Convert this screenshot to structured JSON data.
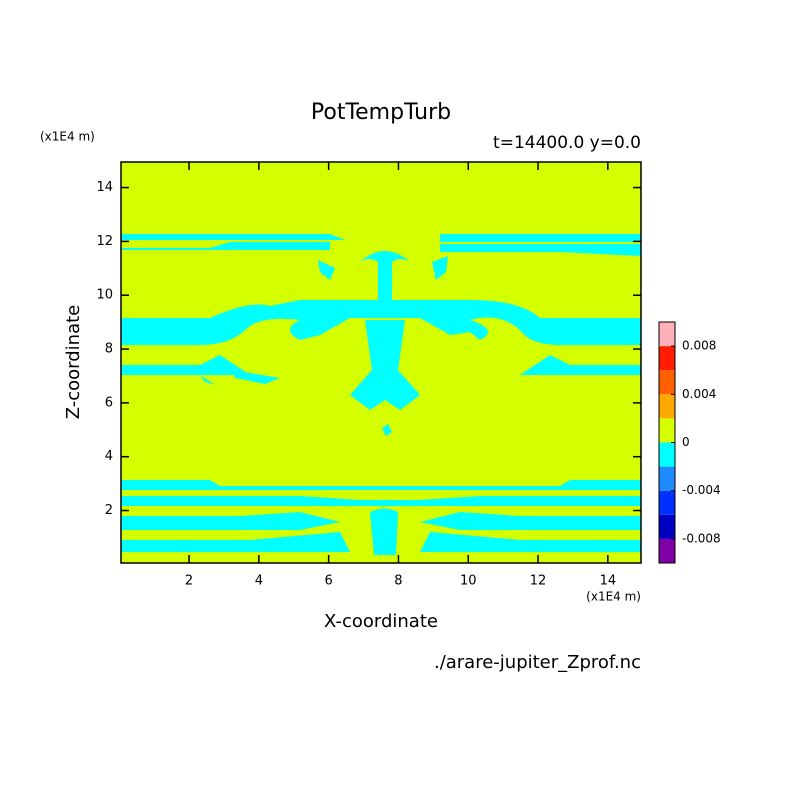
{
  "chart_data": {
    "type": "contour",
    "title": "PotTempTurb",
    "subtitle": "t=14400.0 y=0.0",
    "x_label": "X-coordinate",
    "y_label": "Z-coordinate",
    "x_unit": "(x1E4 m)",
    "y_unit": "(x1E4 m)",
    "source": "./arare-jupiter_Zprof.nc",
    "xlim": [
      0.05,
      14.95
    ],
    "xticks": [
      2,
      4,
      6,
      8,
      10,
      12,
      14
    ],
    "ylim": [
      0.05,
      14.95
    ],
    "yticks": [
      2,
      4,
      6,
      8,
      10,
      12,
      14
    ],
    "colorbar": {
      "levels": [
        -0.01,
        -0.008,
        -0.006,
        -0.004,
        -0.002,
        0,
        0.002,
        0.004,
        0.006,
        0.008,
        0.01
      ],
      "colors": [
        "#8000a8",
        "#0000c0",
        "#0030ff",
        "#1e8cff",
        "#00ffff",
        "#d4ff00",
        "#ffa800",
        "#ff6000",
        "#ff1c00",
        "#ffb0b8"
      ],
      "ticks": [
        -0.008,
        -0.004,
        0,
        0.004,
        0.008
      ]
    }
  }
}
